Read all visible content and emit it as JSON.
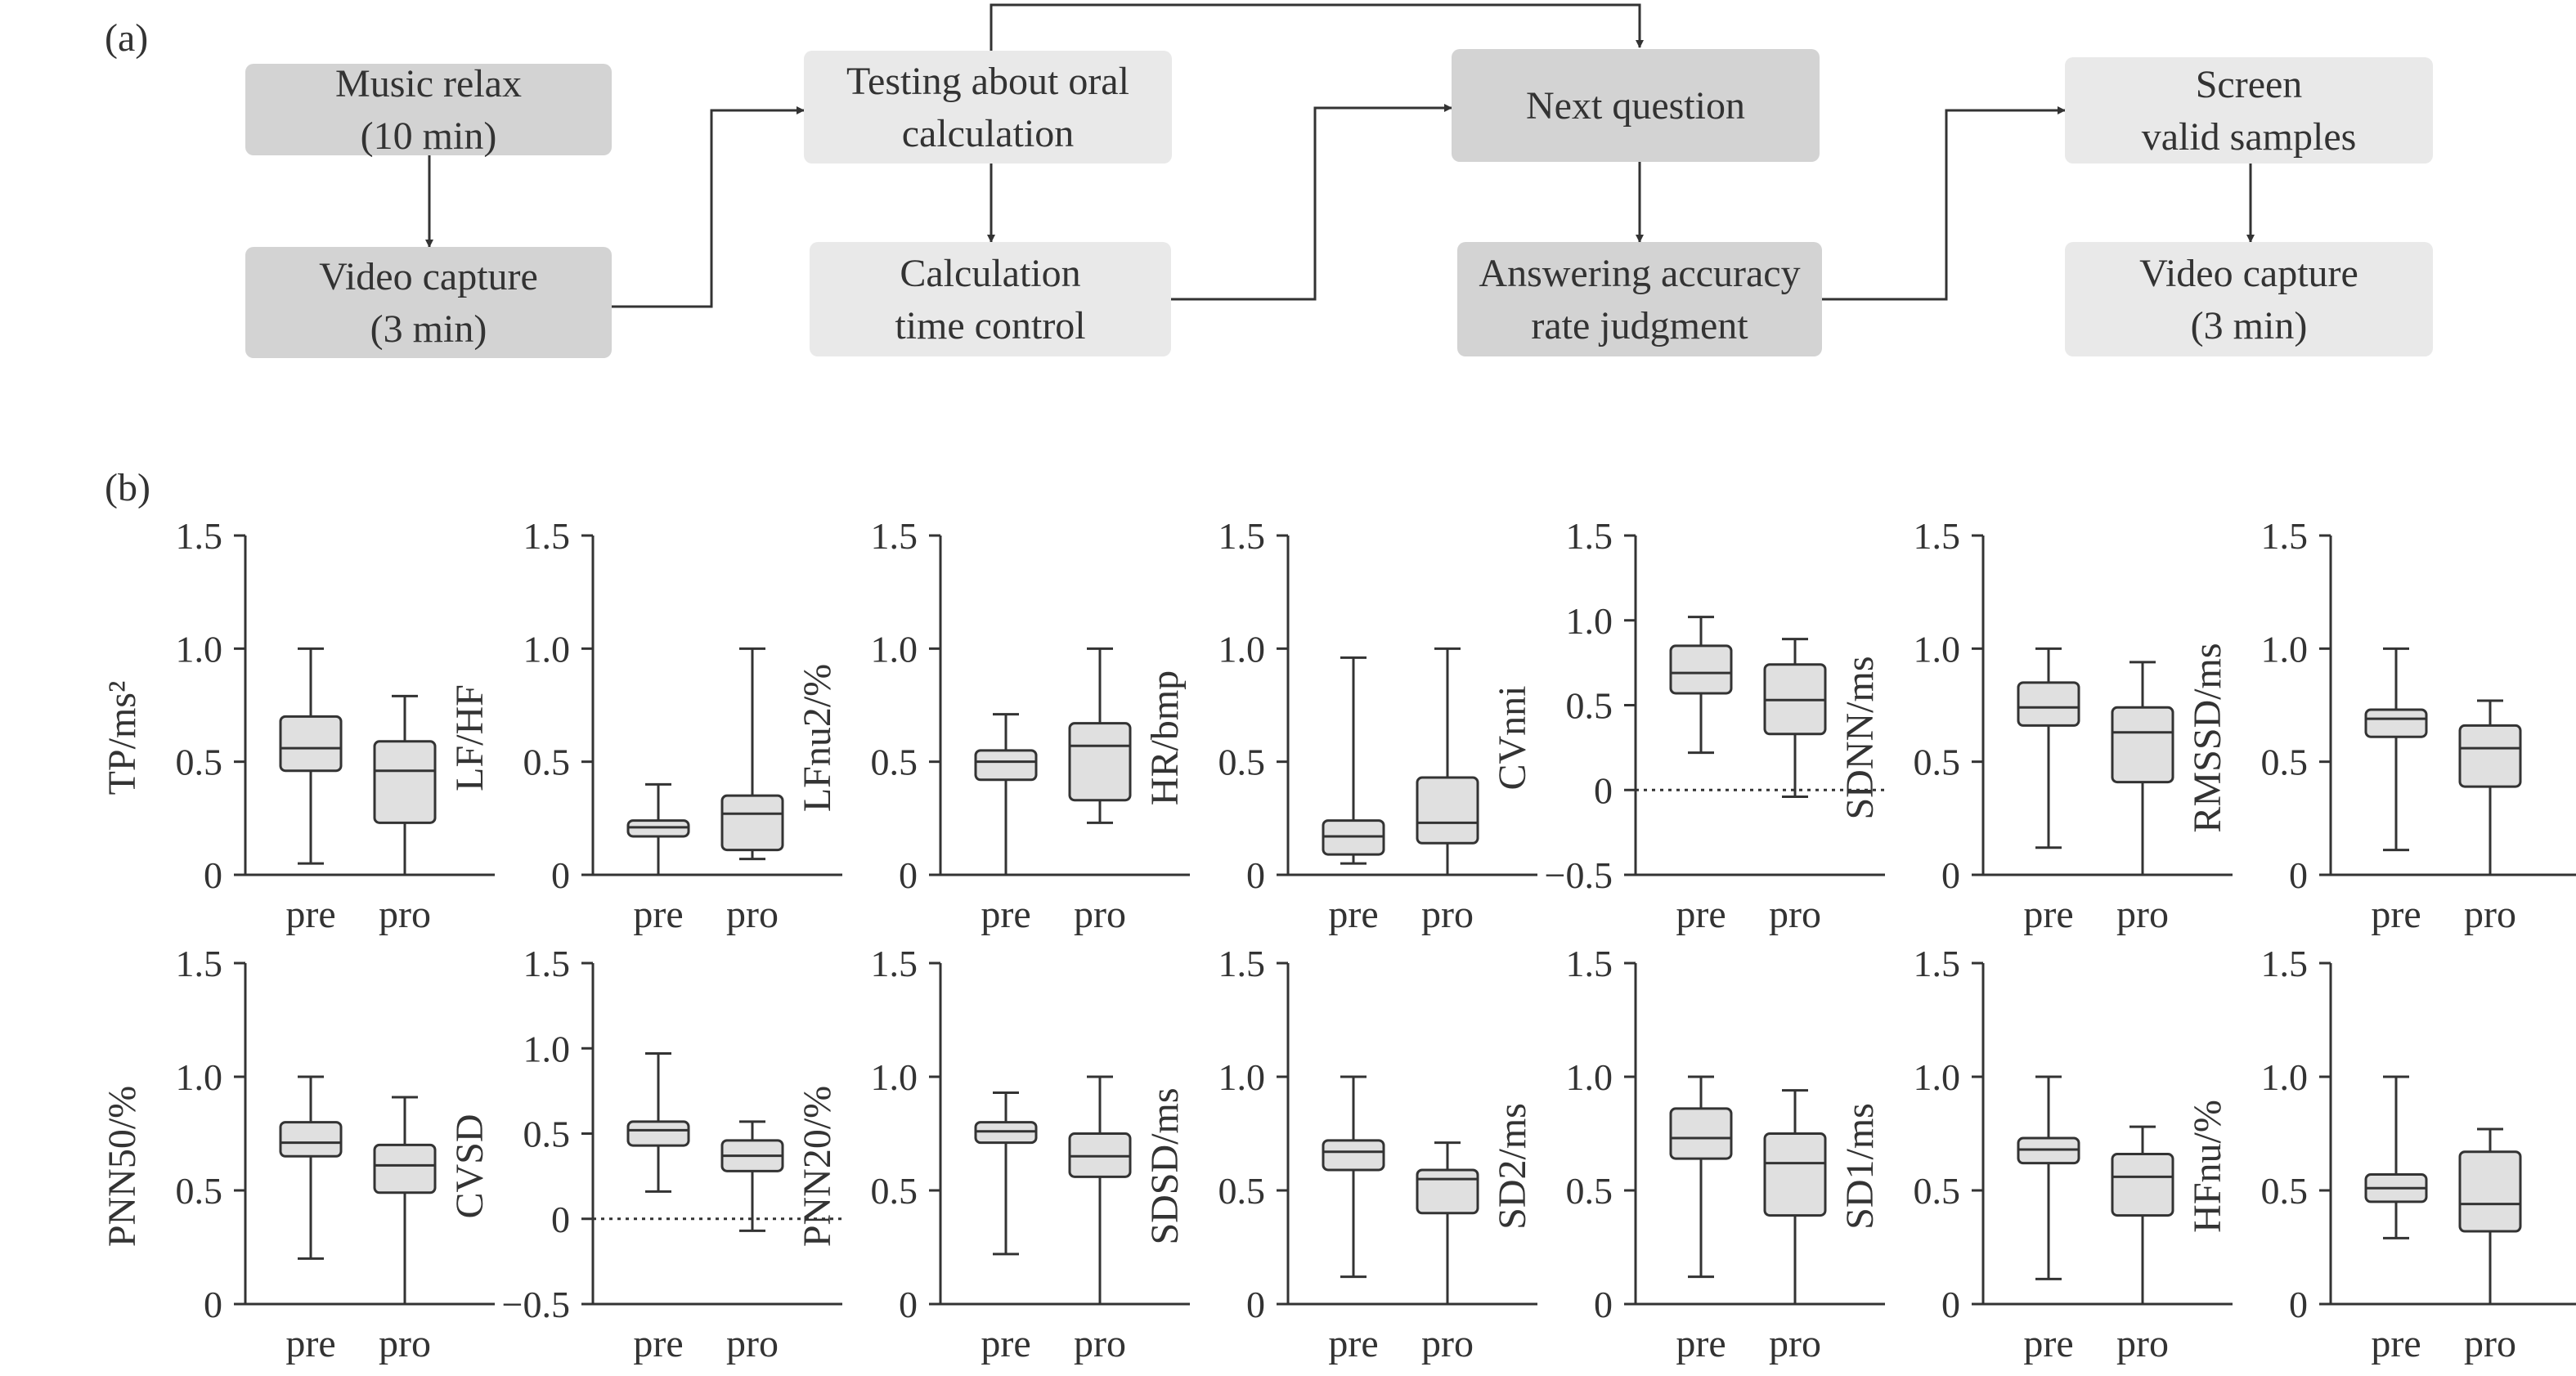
{
  "panel_a": {
    "label": "(a)",
    "boxes": [
      {
        "id": "music",
        "lines": [
          "Music relax",
          "(10 min)"
        ],
        "tone": "dark"
      },
      {
        "id": "video1",
        "lines": [
          "Video capture",
          "(3 min)"
        ],
        "tone": "dark"
      },
      {
        "id": "testing",
        "lines": [
          "Testing about oral",
          "calculation"
        ],
        "tone": "light"
      },
      {
        "id": "calctime",
        "lines": [
          "Calculation",
          "time control"
        ],
        "tone": "light"
      },
      {
        "id": "nextq",
        "lines": [
          "Next question"
        ],
        "tone": "dark"
      },
      {
        "id": "answer",
        "lines": [
          "Answering accuracy",
          "rate judgment"
        ],
        "tone": "dark"
      },
      {
        "id": "screen",
        "lines": [
          "Screen",
          "valid samples"
        ],
        "tone": "light"
      },
      {
        "id": "video2",
        "lines": [
          "Video capture",
          "(3 min)"
        ],
        "tone": "light"
      }
    ],
    "colors": {
      "dark": "#d3d3d3",
      "light": "#e9e9e9",
      "line": "#333333"
    }
  },
  "panel_b": {
    "label": "(b)"
  },
  "chart_data": [
    {
      "type": "box",
      "ylabel": "TP/ms²",
      "ylim": [
        0,
        1.5
      ],
      "yticks": [
        "0",
        "0.5",
        "1.0",
        "1.5"
      ],
      "categories": [
        "pre",
        "pro"
      ],
      "boxes": [
        {
          "min": 0.05,
          "q1": 0.46,
          "median": 0.56,
          "q3": 0.7,
          "max": 1.0
        },
        {
          "min": 0.0,
          "q1": 0.23,
          "median": 0.46,
          "q3": 0.59,
          "max": 0.79
        }
      ]
    },
    {
      "type": "box",
      "ylabel": "LF/HF",
      "ylim": [
        0,
        1.5
      ],
      "yticks": [
        "0",
        "0.5",
        "1.0",
        "1.5"
      ],
      "categories": [
        "pre",
        "pro"
      ],
      "boxes": [
        {
          "min": 0.0,
          "q1": 0.17,
          "median": 0.21,
          "q3": 0.24,
          "max": 0.4
        },
        {
          "min": 0.07,
          "q1": 0.11,
          "median": 0.27,
          "q3": 0.35,
          "max": 1.0
        }
      ]
    },
    {
      "type": "box",
      "ylabel": "LFnu2/%",
      "ylim": [
        0,
        1.5
      ],
      "yticks": [
        "0",
        "0.5",
        "1.0",
        "1.5"
      ],
      "categories": [
        "pre",
        "pro"
      ],
      "boxes": [
        {
          "min": 0.0,
          "q1": 0.42,
          "median": 0.5,
          "q3": 0.55,
          "max": 0.71
        },
        {
          "min": 0.23,
          "q1": 0.33,
          "median": 0.57,
          "q3": 0.67,
          "max": 1.0
        }
      ]
    },
    {
      "type": "box",
      "ylabel": "HR/bmp",
      "ylim": [
        0,
        1.5
      ],
      "yticks": [
        "0",
        "0.5",
        "1.0",
        "1.5"
      ],
      "categories": [
        "pre",
        "pro"
      ],
      "boxes": [
        {
          "min": 0.05,
          "q1": 0.09,
          "median": 0.17,
          "q3": 0.24,
          "max": 0.96
        },
        {
          "min": 0.0,
          "q1": 0.14,
          "median": 0.23,
          "q3": 0.43,
          "max": 1.0
        }
      ]
    },
    {
      "type": "box",
      "ylabel": "CVnni",
      "ylim": [
        -0.5,
        1.5
      ],
      "yticks": [
        "−0.5",
        "0",
        "0.5",
        "1.0",
        "1.5"
      ],
      "zero_line": true,
      "categories": [
        "pre",
        "pro"
      ],
      "boxes": [
        {
          "min": 0.22,
          "q1": 0.57,
          "median": 0.69,
          "q3": 0.85,
          "max": 1.02
        },
        {
          "min": -0.04,
          "q1": 0.33,
          "median": 0.53,
          "q3": 0.74,
          "max": 0.89
        }
      ]
    },
    {
      "type": "box",
      "ylabel": "SDNN/ms",
      "ylim": [
        0,
        1.5
      ],
      "yticks": [
        "0",
        "0.5",
        "1.0",
        "1.5"
      ],
      "categories": [
        "pre",
        "pro"
      ],
      "boxes": [
        {
          "min": 0.12,
          "q1": 0.66,
          "median": 0.74,
          "q3": 0.85,
          "max": 1.0
        },
        {
          "min": 0.0,
          "q1": 0.41,
          "median": 0.63,
          "q3": 0.74,
          "max": 0.94
        }
      ]
    },
    {
      "type": "box",
      "ylabel": "RMSSD/ms",
      "ylim": [
        0,
        1.5
      ],
      "yticks": [
        "0",
        "0.5",
        "1.0",
        "1.5"
      ],
      "categories": [
        "pre",
        "pro"
      ],
      "boxes": [
        {
          "min": 0.11,
          "q1": 0.61,
          "median": 0.69,
          "q3": 0.73,
          "max": 1.0
        },
        {
          "min": 0.0,
          "q1": 0.39,
          "median": 0.56,
          "q3": 0.66,
          "max": 0.77
        }
      ]
    },
    {
      "type": "box",
      "ylabel": "PNN50/%",
      "ylim": [
        0,
        1.5
      ],
      "yticks": [
        "0",
        "0.5",
        "1.0",
        "1.5"
      ],
      "categories": [
        "pre",
        "pro"
      ],
      "boxes": [
        {
          "min": 0.2,
          "q1": 0.65,
          "median": 0.71,
          "q3": 0.8,
          "max": 1.0
        },
        {
          "min": 0.0,
          "q1": 0.49,
          "median": 0.61,
          "q3": 0.7,
          "max": 0.91
        }
      ]
    },
    {
      "type": "box",
      "ylabel": "CVSD",
      "ylim": [
        -0.5,
        1.5
      ],
      "yticks": [
        "−0.5",
        "0",
        "0.5",
        "1.0",
        "1.5"
      ],
      "zero_line": true,
      "categories": [
        "pre",
        "pro"
      ],
      "boxes": [
        {
          "min": 0.16,
          "q1": 0.43,
          "median": 0.52,
          "q3": 0.57,
          "max": 0.97
        },
        {
          "min": -0.07,
          "q1": 0.28,
          "median": 0.37,
          "q3": 0.46,
          "max": 0.57
        }
      ]
    },
    {
      "type": "box",
      "ylabel": "PNN20/%",
      "ylim": [
        0,
        1.5
      ],
      "yticks": [
        "0",
        "0.5",
        "1.0",
        "1.5"
      ],
      "categories": [
        "pre",
        "pro"
      ],
      "boxes": [
        {
          "min": 0.22,
          "q1": 0.71,
          "median": 0.76,
          "q3": 0.8,
          "max": 0.93
        },
        {
          "min": 0.0,
          "q1": 0.56,
          "median": 0.65,
          "q3": 0.75,
          "max": 1.0
        }
      ]
    },
    {
      "type": "box",
      "ylabel": "SDSD/ms",
      "ylim": [
        0,
        1.5
      ],
      "yticks": [
        "0",
        "0.5",
        "1.0",
        "1.5"
      ],
      "categories": [
        "pre",
        "pro"
      ],
      "boxes": [
        {
          "min": 0.12,
          "q1": 0.59,
          "median": 0.67,
          "q3": 0.72,
          "max": 1.0
        },
        {
          "min": 0.0,
          "q1": 0.4,
          "median": 0.55,
          "q3": 0.59,
          "max": 0.71
        }
      ]
    },
    {
      "type": "box",
      "ylabel": "SD2/ms",
      "ylim": [
        0,
        1.5
      ],
      "yticks": [
        "0",
        "0.5",
        "1.0",
        "1.5"
      ],
      "categories": [
        "pre",
        "pro"
      ],
      "boxes": [
        {
          "min": 0.12,
          "q1": 0.64,
          "median": 0.73,
          "q3": 0.86,
          "max": 1.0
        },
        {
          "min": 0.0,
          "q1": 0.39,
          "median": 0.62,
          "q3": 0.75,
          "max": 0.94
        }
      ]
    },
    {
      "type": "box",
      "ylabel": "SD1/ms",
      "ylim": [
        0,
        1.5
      ],
      "yticks": [
        "0",
        "0.5",
        "1.0",
        "1.5"
      ],
      "categories": [
        "pre",
        "pro"
      ],
      "boxes": [
        {
          "min": 0.11,
          "q1": 0.62,
          "median": 0.68,
          "q3": 0.73,
          "max": 1.0
        },
        {
          "min": 0.0,
          "q1": 0.39,
          "median": 0.56,
          "q3": 0.66,
          "max": 0.78
        }
      ]
    },
    {
      "type": "box",
      "ylabel": "HFnu/%",
      "ylim": [
        0,
        1.5
      ],
      "yticks": [
        "0",
        "0.5",
        "1.0",
        "1.5"
      ],
      "categories": [
        "pre",
        "pro"
      ],
      "boxes": [
        {
          "min": 0.29,
          "q1": 0.45,
          "median": 0.51,
          "q3": 0.57,
          "max": 1.0
        },
        {
          "min": 0.0,
          "q1": 0.32,
          "median": 0.44,
          "q3": 0.67,
          "max": 0.77
        }
      ]
    }
  ]
}
